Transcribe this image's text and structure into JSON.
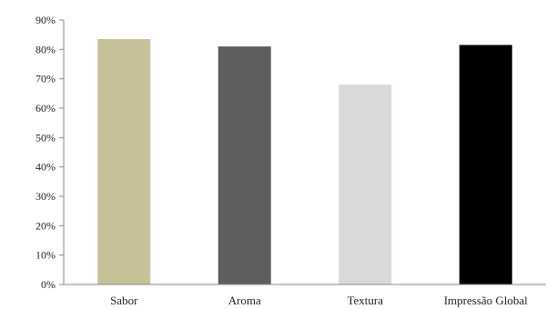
{
  "chart_data": {
    "type": "bar",
    "title": "",
    "xlabel": "",
    "ylabel": "",
    "categories": [
      "Sabor",
      "Aroma",
      "Textura",
      "Impressão Global"
    ],
    "values": [
      83.5,
      81,
      68,
      81.5
    ],
    "colors": [
      "#c6c197",
      "#5e5e5e",
      "#d9d9d9",
      "#000000"
    ],
    "ylim": [
      0,
      90
    ],
    "yticks": [
      0,
      10,
      20,
      30,
      40,
      50,
      60,
      70,
      80,
      90
    ],
    "ytick_suffix": "%",
    "grid": false,
    "legend": "none"
  }
}
